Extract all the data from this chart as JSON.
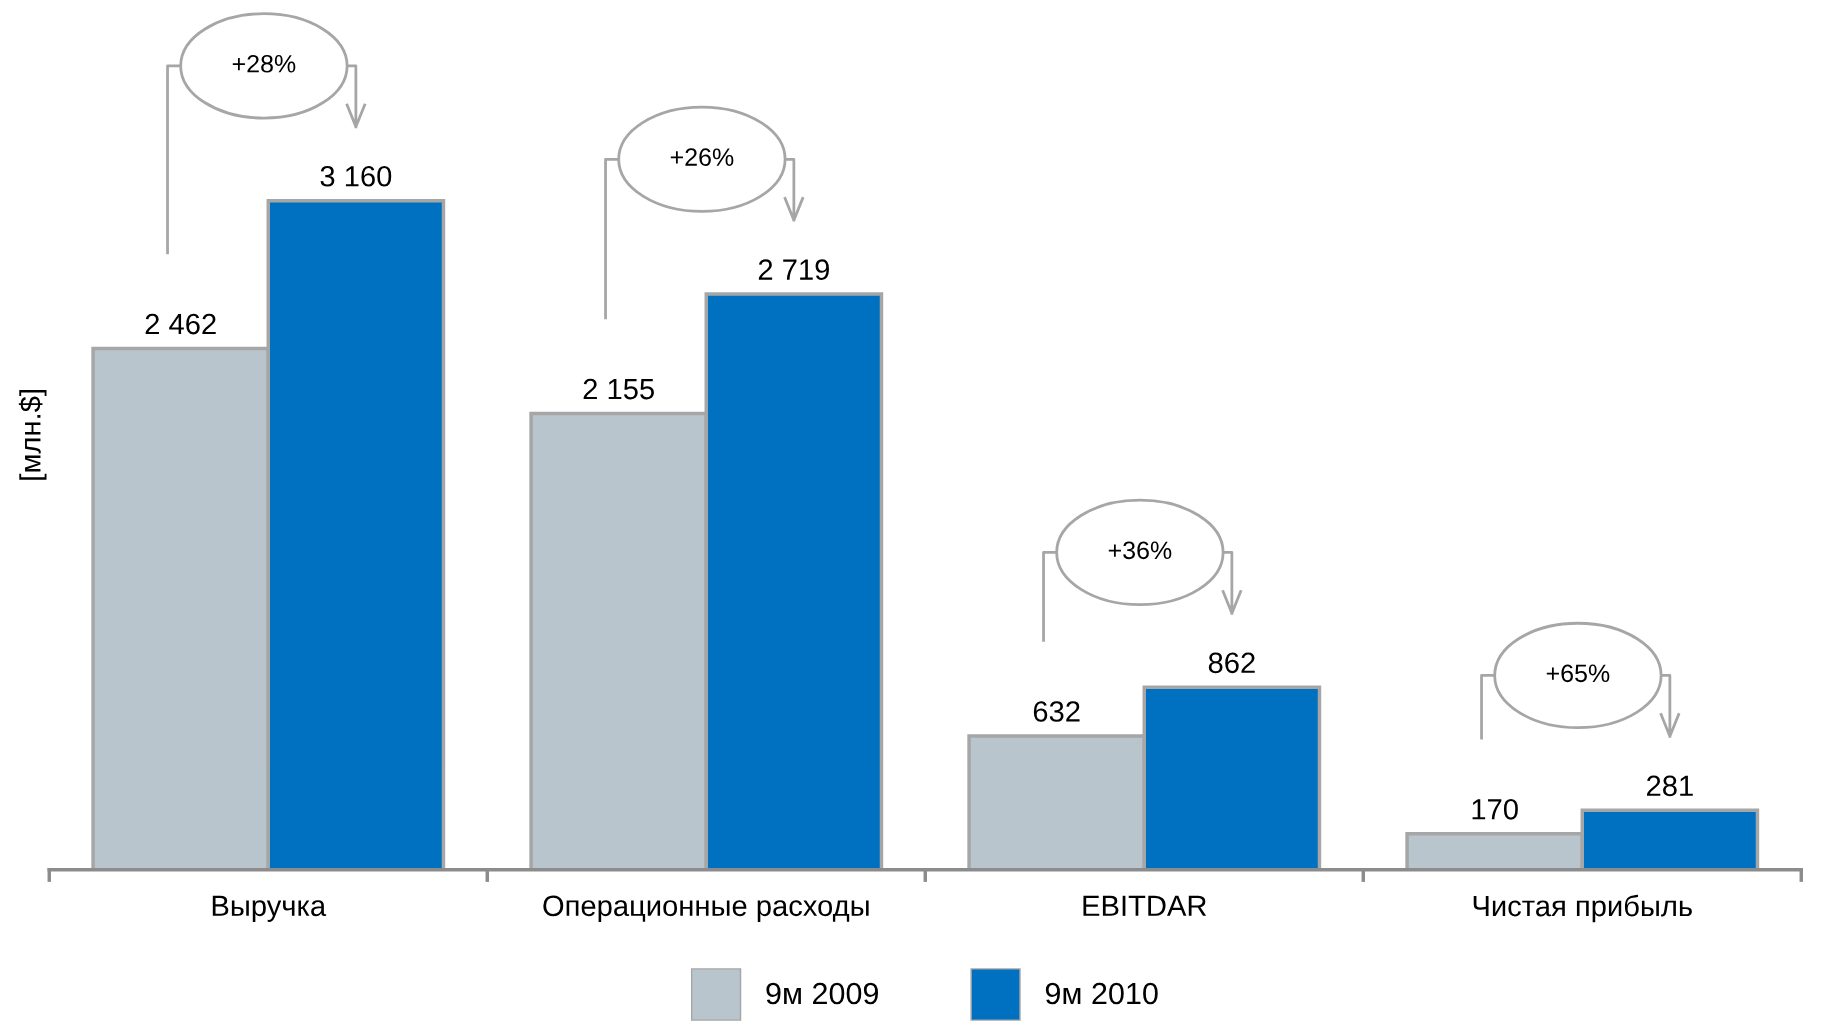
{
  "chart_data": {
    "type": "bar",
    "ylabel": "[млн.$]",
    "categories": [
      "Выручка",
      "Операционные расходы",
      "EBITDAR",
      "Чистая прибыль"
    ],
    "series": [
      {
        "name": "9м 2009",
        "color": "#b8c5cc",
        "values": [
          2462,
          2155,
          632,
          170
        ],
        "value_labels": [
          "2 462",
          "2 155",
          "632",
          "170"
        ]
      },
      {
        "name": "9м 2010",
        "color": "#0070c0",
        "values": [
          3160,
          2719,
          862,
          281
        ],
        "value_labels": [
          "3 160",
          "2 719",
          "862",
          "281"
        ]
      }
    ],
    "annotations": [
      "+28%",
      "+26%",
      "+36%",
      "+65%"
    ],
    "legend": "bottom",
    "grid": false
  }
}
